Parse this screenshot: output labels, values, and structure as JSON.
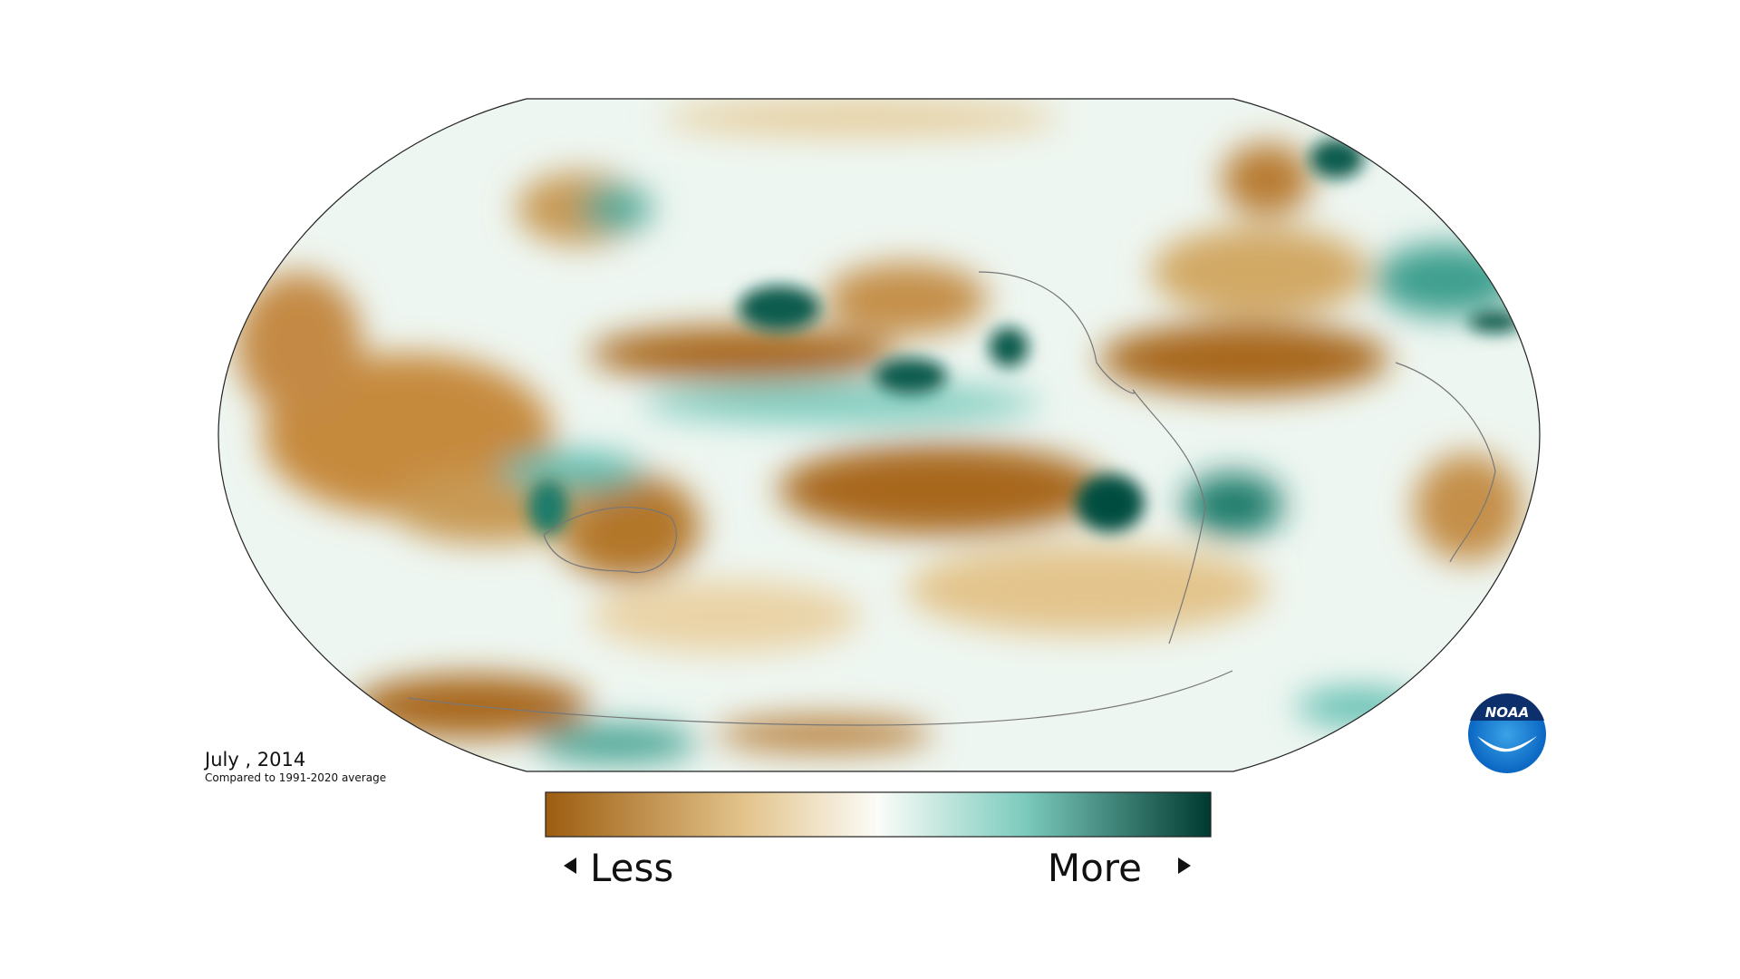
{
  "map": {
    "date": "July , 2014",
    "subtitle": "Compared to 1991-2020 average"
  },
  "legend": {
    "low_label": "Less",
    "high_label": "More"
  },
  "logo": {
    "text": "NOAA"
  }
}
